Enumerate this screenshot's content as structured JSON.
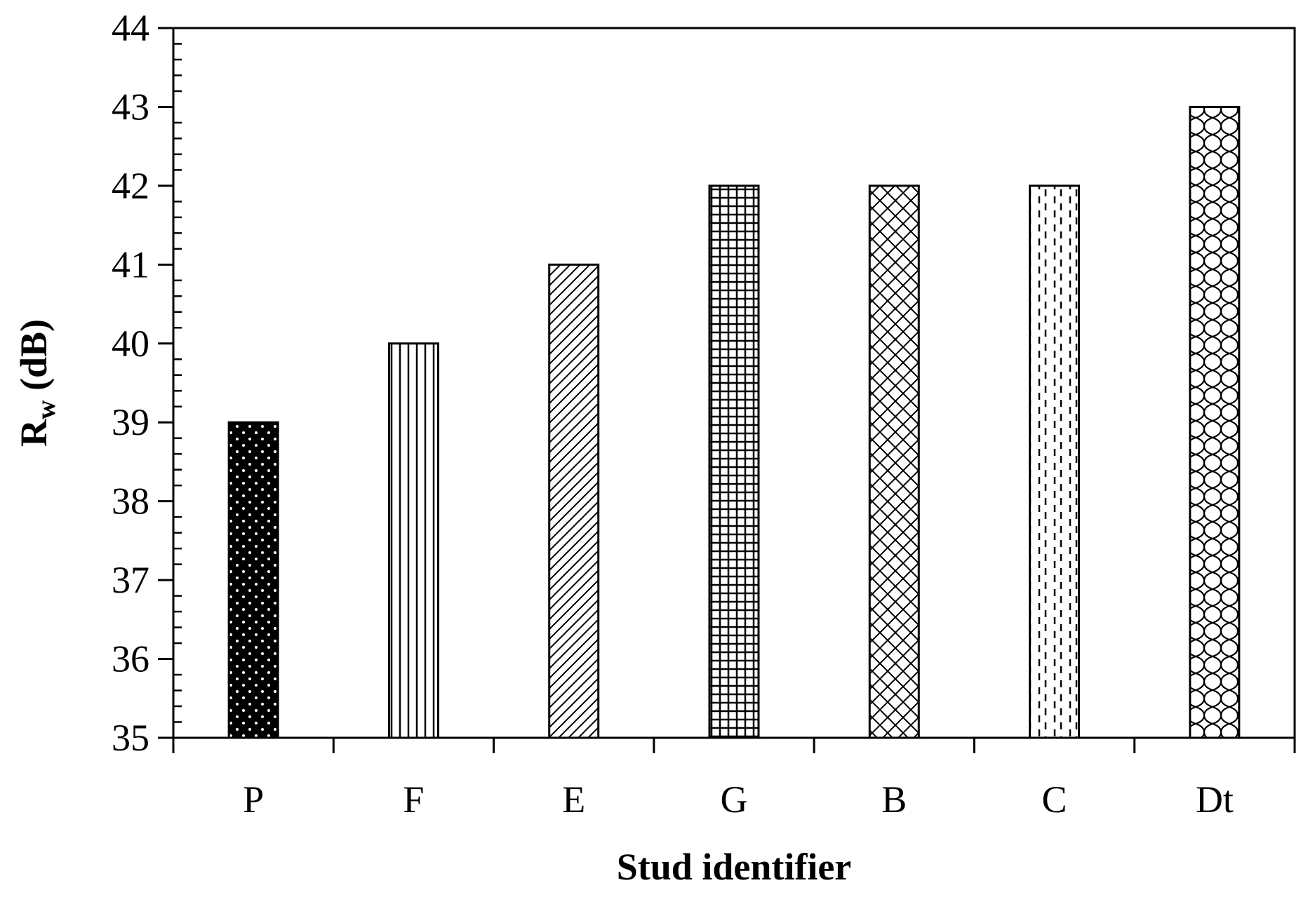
{
  "chart_data": {
    "type": "bar",
    "title": "",
    "xlabel": "Stud identifier",
    "ylabel_main": "R",
    "ylabel_sub": "w",
    "ylabel_rest": " (dB)",
    "categories": [
      "P",
      "F",
      "E",
      "G",
      "B",
      "C",
      "Dt"
    ],
    "values": [
      39,
      40,
      41,
      42,
      42,
      42,
      43
    ],
    "patterns": [
      "dots-dark",
      "vertical-lines",
      "diagonal-lines",
      "grid",
      "crosshatch",
      "dashed-vertical",
      "wave"
    ],
    "ylim": [
      35,
      44
    ],
    "yticks": [
      35,
      36,
      37,
      38,
      39,
      40,
      41,
      42,
      43,
      44
    ],
    "grid": false,
    "legend": "none"
  }
}
